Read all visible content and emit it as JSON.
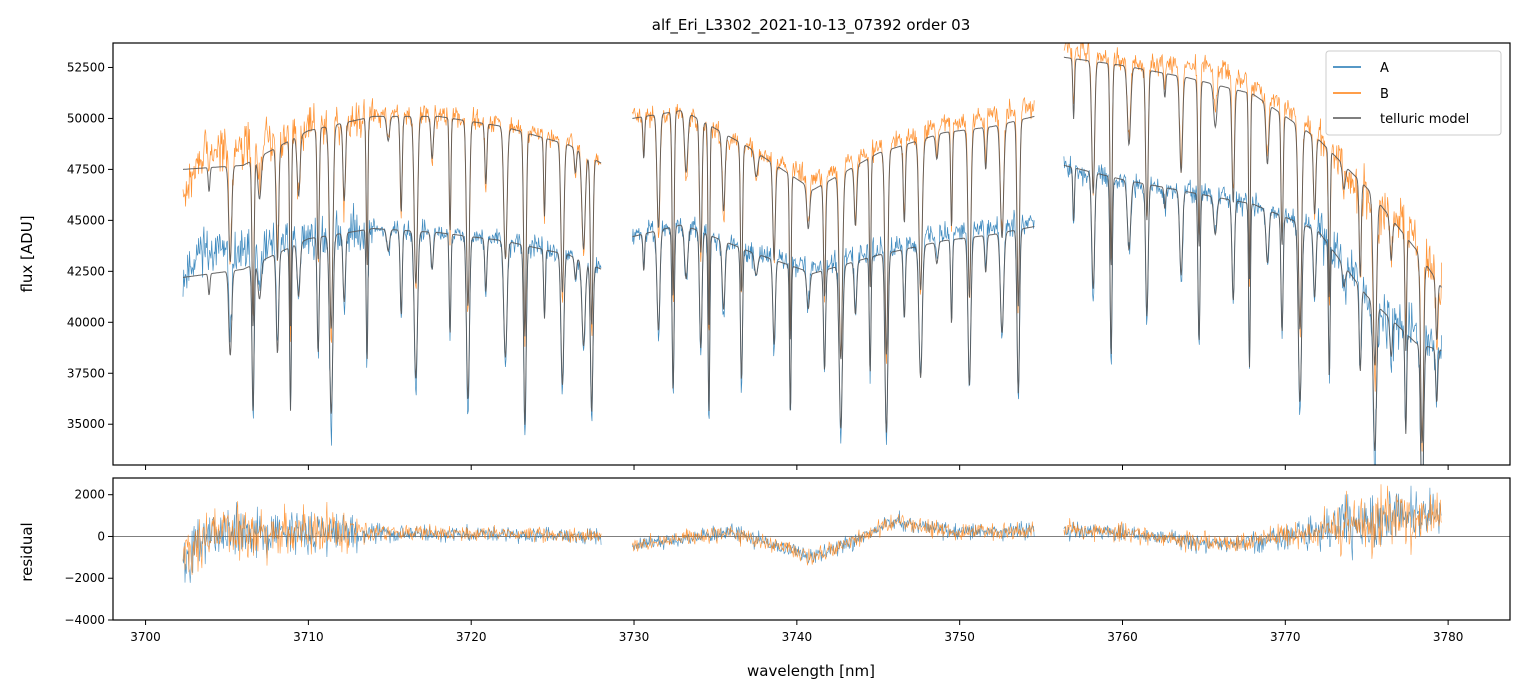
{
  "chart_data": [
    {
      "panel": "top",
      "type": "line",
      "title": "alf_Eri_L3302_2021-10-13_07392  order 03",
      "xlabel": "",
      "ylabel": "flux [ADU]",
      "xlim": [
        3698.0,
        3783.8
      ],
      "ylim": [
        33000,
        53700
      ],
      "x_ticks": [
        "3700",
        "3710",
        "3720",
        "3730",
        "3740",
        "3750",
        "3760",
        "3770",
        "3780"
      ],
      "x_tick_values": [
        3700,
        3710,
        3720,
        3730,
        3740,
        3750,
        3760,
        3770,
        3780
      ],
      "x_ticklabels_visible": false,
      "y_ticks": [
        "35000",
        "37500",
        "40000",
        "42500",
        "45000",
        "47500",
        "50000",
        "52500"
      ],
      "y_tick_values": [
        35000,
        37500,
        40000,
        42500,
        45000,
        47500,
        50000,
        52500
      ],
      "legend": {
        "placement": "top-right",
        "entries": [
          "A",
          "B",
          "telluric model"
        ]
      },
      "colors": {
        "A": "#1f77b4",
        "B": "#ff7f0e",
        "telluric model": "#555555"
      },
      "segments": [
        [
          3702.3,
          3728.0
        ],
        [
          3729.9,
          3754.6
        ],
        [
          3756.4,
          3779.6
        ]
      ],
      "series": [
        {
          "name": "A",
          "continuum_x": [
            3702.3,
            3703.5,
            3706,
            3710,
            3714,
            3718,
            3722,
            3726,
            3728.0,
            3729.9,
            3733,
            3737,
            3741,
            3745,
            3749,
            3752,
            3754.6,
            3756.4,
            3758,
            3762,
            3766,
            3770,
            3772,
            3774,
            3776,
            3778,
            3779.6
          ],
          "continuum_y": [
            42200,
            43800,
            43300,
            44200,
            44600,
            44400,
            44000,
            43300,
            42600,
            44300,
            44800,
            43500,
            42700,
            43600,
            44400,
            44700,
            45000,
            47800,
            47200,
            46600,
            46300,
            45300,
            44600,
            42500,
            40300,
            39500,
            38800
          ]
        },
        {
          "name": "B",
          "continuum_x": [
            3702.3,
            3703.5,
            3706,
            3710,
            3714,
            3718,
            3722,
            3726,
            3728.0,
            3729.9,
            3733,
            3737,
            3741,
            3745,
            3749,
            3752,
            3754.6,
            3756.4,
            3758,
            3762,
            3766,
            3770,
            3772,
            3774,
            3776,
            3778,
            3779.6
          ],
          "continuum_y": [
            46000,
            48300,
            48600,
            49600,
            50200,
            50200,
            49700,
            48800,
            47900,
            50000,
            50300,
            48600,
            47000,
            48600,
            49700,
            50100,
            50600,
            53600,
            53200,
            52600,
            52600,
            50600,
            49200,
            47200,
            45600,
            44200,
            41800
          ]
        },
        {
          "name": "telluric model",
          "applies_to": [
            "A",
            "B"
          ],
          "continuum_A_x": [
            3702.3,
            3706,
            3710,
            3714,
            3718,
            3722,
            3726,
            3728.0,
            3729.9,
            3733,
            3737,
            3741,
            3745,
            3749,
            3752,
            3754.6,
            3756.4,
            3760,
            3764,
            3768,
            3772,
            3775,
            3778,
            3779.6
          ],
          "continuum_A_y": [
            42200,
            42600,
            44100,
            44600,
            44400,
            44000,
            43300,
            42600,
            44200,
            44800,
            43500,
            42400,
            43300,
            44000,
            44300,
            44700,
            47700,
            47000,
            46400,
            45800,
            44500,
            41300,
            39000,
            38600
          ],
          "continuum_B_x": [
            3702.3,
            3706,
            3710,
            3714,
            3718,
            3722,
            3726,
            3728.0,
            3729.9,
            3733,
            3737,
            3741,
            3745,
            3749,
            3752,
            3754.6,
            3756.4,
            3760,
            3764,
            3768,
            3772,
            3775,
            3778,
            3779.6
          ],
          "continuum_B_y": [
            47500,
            47700,
            49400,
            50100,
            50100,
            49600,
            48700,
            47800,
            50000,
            50400,
            48600,
            46500,
            48300,
            49300,
            49600,
            50100,
            53000,
            52600,
            52000,
            51200,
            49000,
            46600,
            43600,
            41700
          ]
        }
      ],
      "absorption_lines_nm": [
        3703.9,
        3705.2,
        3706.6,
        3707.0,
        3708.1,
        3708.9,
        3709.4,
        3710.6,
        3711.4,
        3712.2,
        3713.6,
        3714.9,
        3715.7,
        3716.6,
        3717.6,
        3718.7,
        3719.8,
        3720.9,
        3722.1,
        3723.3,
        3724.5,
        3725.6,
        3726.4,
        3726.9,
        3727.4,
        3730.6,
        3731.5,
        3732.4,
        3733.2,
        3734.1,
        3734.6,
        3735.5,
        3736.6,
        3737.5,
        3738.6,
        3739.6,
        3740.7,
        3741.7,
        3742.7,
        3743.6,
        3744.5,
        3745.5,
        3746.6,
        3747.6,
        3748.6,
        3749.5,
        3750.6,
        3751.6,
        3752.6,
        3753.6,
        3757.0,
        3758.2,
        3759.3,
        3760.4,
        3761.5,
        3762.6,
        3763.6,
        3764.7,
        3765.7,
        3766.8,
        3767.8,
        3768.9,
        3769.8,
        3770.9,
        3771.8,
        3772.7,
        3773.6,
        3774.6,
        3775.5,
        3776.5,
        3777.4,
        3778.4,
        3779.3
      ]
    },
    {
      "panel": "bottom",
      "type": "line",
      "title": "",
      "xlabel": "wavelength [nm]",
      "ylabel": "residual",
      "xlim": [
        3698.0,
        3783.8
      ],
      "ylim": [
        -4000,
        2800
      ],
      "x_ticks": [
        "3700",
        "3710",
        "3720",
        "3730",
        "3740",
        "3750",
        "3760",
        "3770",
        "3780"
      ],
      "x_tick_values": [
        3700,
        3710,
        3720,
        3730,
        3740,
        3750,
        3760,
        3770,
        3780
      ],
      "y_ticks": [
        "−4000",
        "−2000",
        "0",
        "2000"
      ],
      "y_tick_values": [
        -4000,
        -2000,
        0,
        2000
      ],
      "reference_line_y": 0,
      "series": [
        {
          "name": "A",
          "noise_x": [
            3702.3,
            3704,
            3708,
            3712,
            3714,
            3720,
            3728,
            3730,
            3740,
            3746,
            3754.6,
            3756.4,
            3766,
            3772,
            3774,
            3778,
            3779.6
          ],
          "noise_y": [
            1600,
            1700,
            1500,
            1300,
            600,
            450,
            450,
            450,
            500,
            500,
            550,
            550,
            500,
            900,
            2100,
            1700,
            1400
          ]
        },
        {
          "name": "B",
          "noise_x": [
            3702.3,
            3704,
            3708,
            3712,
            3714,
            3720,
            3728,
            3730,
            3740,
            3746,
            3754.6,
            3756.4,
            3766,
            3772,
            3774,
            3778,
            3779.6
          ],
          "noise_y": [
            1500,
            1700,
            1500,
            1300,
            600,
            450,
            450,
            450,
            500,
            500,
            550,
            550,
            550,
            900,
            1800,
            1700,
            1400
          ]
        }
      ],
      "offset_trend_x": [
        3702.3,
        3704,
        3714,
        3722,
        3728,
        3730,
        3736,
        3741,
        3746,
        3750,
        3754.6,
        3756.4,
        3760,
        3766,
        3770,
        3776,
        3779.6
      ],
      "offset_trend_y": [
        -1200,
        200,
        200,
        100,
        0,
        -400,
        200,
        -1000,
        700,
        200,
        300,
        300,
        200,
        -400,
        0,
        800,
        900
      ]
    }
  ]
}
